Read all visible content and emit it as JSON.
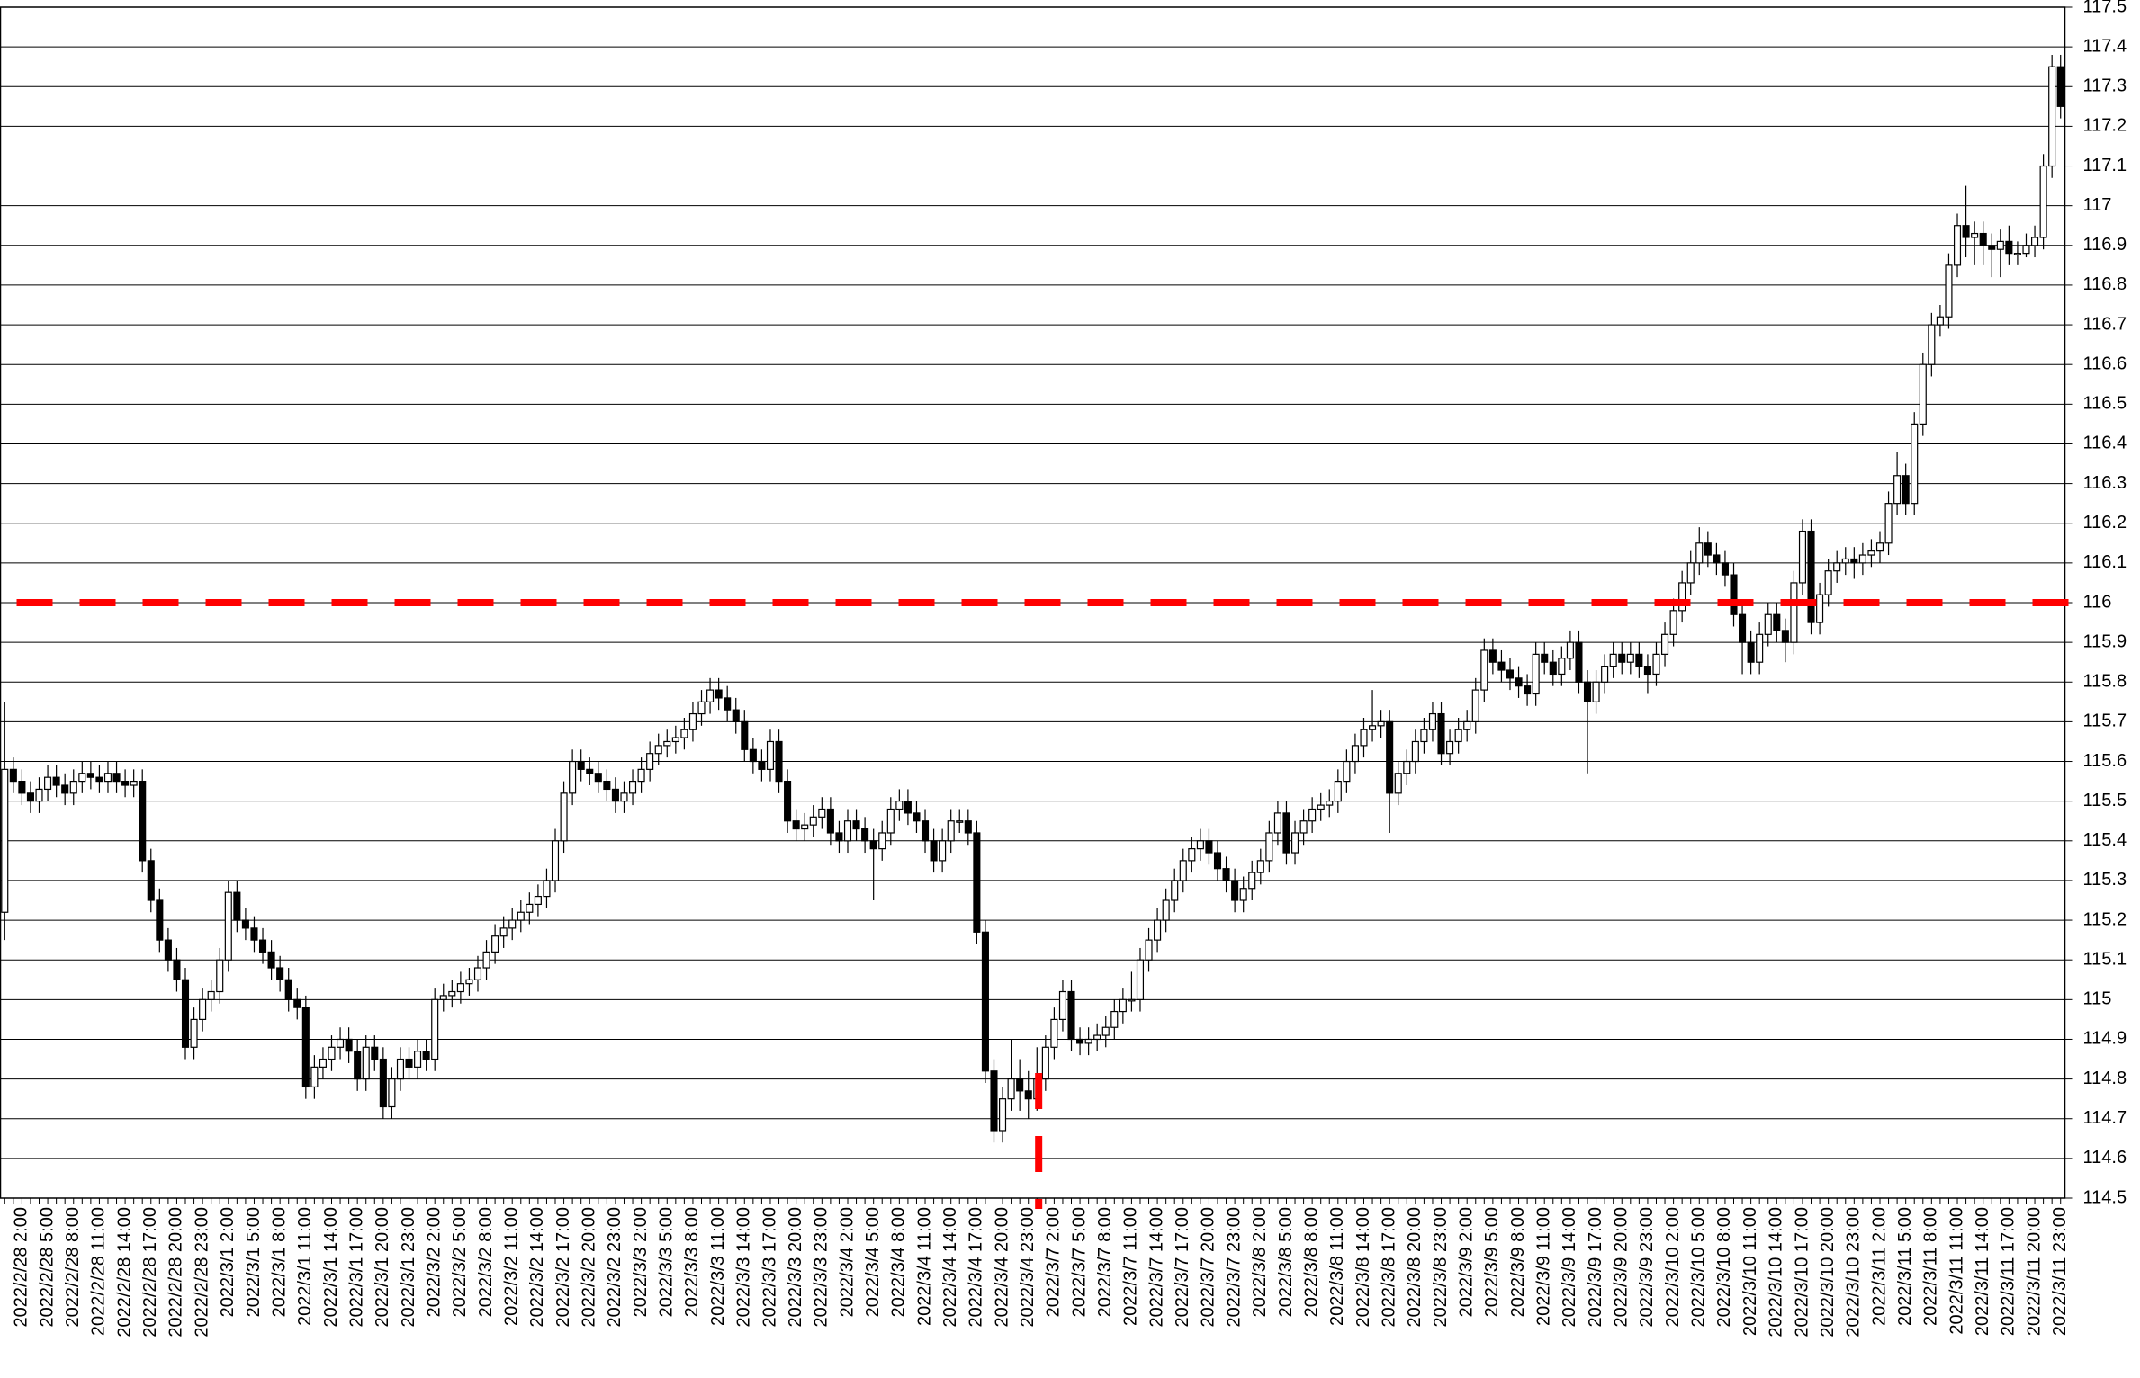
{
  "chart_data": {
    "type": "candlestick",
    "categories": [
      null,
      null,
      "2022/2/28 2:00",
      null,
      null,
      "2022/2/28 5:00",
      null,
      null,
      "2022/2/28 8:00",
      null,
      null,
      "2022/2/28 11:00",
      null,
      null,
      "2022/2/28 14:00",
      null,
      null,
      "2022/2/28 17:00",
      null,
      null,
      "2022/2/28 20:00",
      null,
      null,
      "2022/2/28 23:00",
      null,
      null,
      "2022/3/1 2:00",
      null,
      null,
      "2022/3/1 5:00",
      null,
      null,
      "2022/3/1 8:00",
      null,
      null,
      "2022/3/1 11:00",
      null,
      null,
      "2022/3/1 14:00",
      null,
      null,
      "2022/3/1 17:00",
      null,
      null,
      "2022/3/1 20:00",
      null,
      null,
      "2022/3/1 23:00",
      null,
      null,
      "2022/3/2 2:00",
      null,
      null,
      "2022/3/2 5:00",
      null,
      null,
      "2022/3/2 8:00",
      null,
      null,
      "2022/3/2 11:00",
      null,
      null,
      "2022/3/2 14:00",
      null,
      null,
      "2022/3/2 17:00",
      null,
      null,
      "2022/3/2 20:00",
      null,
      null,
      "2022/3/2 23:00",
      null,
      null,
      "2022/3/3 2:00",
      null,
      null,
      "2022/3/3 5:00",
      null,
      null,
      "2022/3/3 8:00",
      null,
      null,
      "2022/3/3 11:00",
      null,
      null,
      "2022/3/3 14:00",
      null,
      null,
      "2022/3/3 17:00",
      null,
      null,
      "2022/3/3 20:00",
      null,
      null,
      "2022/3/3 23:00",
      null,
      null,
      "2022/3/4 2:00",
      null,
      null,
      "2022/3/4 5:00",
      null,
      null,
      "2022/3/4 8:00",
      null,
      null,
      "2022/3/4 11:00",
      null,
      null,
      "2022/3/4 14:00",
      null,
      null,
      "2022/3/4 17:00",
      null,
      null,
      "2022/3/4 20:00",
      null,
      null,
      "2022/3/4 23:00",
      null,
      null,
      "2022/3/7 2:00",
      null,
      null,
      "2022/3/7 5:00",
      null,
      null,
      "2022/3/7 8:00",
      null,
      null,
      "2022/3/7 11:00",
      null,
      null,
      "2022/3/7 14:00",
      null,
      null,
      "2022/3/7 17:00",
      null,
      null,
      "2022/3/7 20:00",
      null,
      null,
      "2022/3/7 23:00",
      null,
      null,
      "2022/3/8 2:00",
      null,
      null,
      "2022/3/8 5:00",
      null,
      null,
      "2022/3/8 8:00",
      null,
      null,
      "2022/3/8 11:00",
      null,
      null,
      "2022/3/8 14:00",
      null,
      null,
      "2022/3/8 17:00",
      null,
      null,
      "2022/3/8 20:00",
      null,
      null,
      "2022/3/8 23:00",
      null,
      null,
      "2022/3/9 2:00",
      null,
      null,
      "2022/3/9 5:00",
      null,
      null,
      "2022/3/9 8:00",
      null,
      null,
      "2022/3/9 11:00",
      null,
      null,
      "2022/3/9 14:00",
      null,
      null,
      "2022/3/9 17:00",
      null,
      null,
      "2022/3/9 20:00",
      null,
      null,
      "2022/3/9 23:00",
      null,
      null,
      "2022/3/10 2:00",
      null,
      null,
      "2022/3/10 5:00",
      null,
      null,
      "2022/3/10 8:00",
      null,
      null,
      "2022/3/10 11:00",
      null,
      null,
      "2022/3/10 14:00",
      null,
      null,
      "2022/3/10 17:00",
      null,
      null,
      "2022/3/10 20:00",
      null,
      null,
      "2022/3/10 23:00",
      null,
      null,
      "2022/3/11 2:00",
      null,
      null,
      "2022/3/11 5:00",
      null,
      null,
      "2022/3/11 8:00",
      null,
      null,
      "2022/3/11 11:00",
      null,
      null,
      "2022/3/11 14:00",
      null,
      null,
      "2022/3/11 17:00",
      null,
      null,
      "2022/3/11 20:00",
      null,
      null,
      "2022/3/11 23:00"
    ],
    "open": [
      115.22,
      115.58,
      115.55,
      115.52,
      115.5,
      115.53,
      115.56,
      115.54,
      115.52,
      115.55,
      115.57,
      115.56,
      115.55,
      115.57,
      115.55,
      115.54,
      115.55,
      115.35,
      115.25,
      115.15,
      115.1,
      115.05,
      114.88,
      114.95,
      115.0,
      115.02,
      115.1,
      115.27,
      115.2,
      115.18,
      115.15,
      115.12,
      115.08,
      115.05,
      115.0,
      114.98,
      114.78,
      114.83,
      114.85,
      114.88,
      114.9,
      114.87,
      114.8,
      114.88,
      114.85,
      114.73,
      114.8,
      114.85,
      114.83,
      114.87,
      114.85,
      115.0,
      115.01,
      115.02,
      115.04,
      115.05,
      115.08,
      115.12,
      115.16,
      115.18,
      115.2,
      115.22,
      115.24,
      115.26,
      115.3,
      115.4,
      115.52,
      115.6,
      115.58,
      115.57,
      115.55,
      115.53,
      115.5,
      115.52,
      115.55,
      115.58,
      115.62,
      115.64,
      115.65,
      115.66,
      115.68,
      115.72,
      115.75,
      115.78,
      115.76,
      115.73,
      115.7,
      115.63,
      115.6,
      115.58,
      115.65,
      115.55,
      115.45,
      115.43,
      115.44,
      115.46,
      115.48,
      115.42,
      115.4,
      115.45,
      115.43,
      115.4,
      115.38,
      115.42,
      115.48,
      115.5,
      115.47,
      115.45,
      115.4,
      115.35,
      115.4,
      115.45,
      115.45,
      115.42,
      115.17,
      114.82,
      114.67,
      114.75,
      114.8,
      114.77,
      114.75,
      114.8,
      114.88,
      114.95,
      115.02,
      114.9,
      114.89,
      114.9,
      114.91,
      114.93,
      114.97,
      115.0,
      115.0,
      115.1,
      115.15,
      115.2,
      115.25,
      115.3,
      115.35,
      115.38,
      115.4,
      115.37,
      115.33,
      115.3,
      115.25,
      115.28,
      115.32,
      115.35,
      115.42,
      115.47,
      115.37,
      115.42,
      115.45,
      115.48,
      115.49,
      115.5,
      115.55,
      115.6,
      115.64,
      115.68,
      115.69,
      115.7,
      115.52,
      115.57,
      115.6,
      115.65,
      115.68,
      115.72,
      115.62,
      115.65,
      115.68,
      115.7,
      115.78,
      115.88,
      115.85,
      115.83,
      115.81,
      115.79,
      115.77,
      115.87,
      115.85,
      115.82,
      115.86,
      115.9,
      115.8,
      115.75,
      115.8,
      115.84,
      115.87,
      115.85,
      115.87,
      115.84,
      115.82,
      115.87,
      115.92,
      115.98,
      116.05,
      116.1,
      116.15,
      116.12,
      116.1,
      116.07,
      115.97,
      115.9,
      115.85,
      115.92,
      115.97,
      115.93,
      115.9,
      116.05,
      116.18,
      115.95,
      116.02,
      116.08,
      116.1,
      116.11,
      116.1,
      116.12,
      116.13,
      116.15,
      116.25,
      116.32,
      116.25,
      116.45,
      116.6,
      116.7,
      116.72,
      116.85,
      116.95,
      116.92,
      116.93,
      116.9,
      116.89,
      116.91,
      116.88,
      116.88,
      116.9,
      116.92,
      117.1,
      117.35
    ],
    "high": [
      115.75,
      115.61,
      115.58,
      115.55,
      115.56,
      115.59,
      115.59,
      115.57,
      115.58,
      115.6,
      115.6,
      115.59,
      115.6,
      115.6,
      115.58,
      115.58,
      115.58,
      115.38,
      115.28,
      115.18,
      115.13,
      115.08,
      114.98,
      115.03,
      115.05,
      115.13,
      115.3,
      115.3,
      115.23,
      115.21,
      115.18,
      115.15,
      115.11,
      115.08,
      115.03,
      115.01,
      114.86,
      114.88,
      114.91,
      114.93,
      114.93,
      114.9,
      114.91,
      114.91,
      114.88,
      114.83,
      114.88,
      114.88,
      114.9,
      114.9,
      115.03,
      115.04,
      115.05,
      115.07,
      115.08,
      115.11,
      115.15,
      115.19,
      115.21,
      115.23,
      115.25,
      115.27,
      115.29,
      115.33,
      115.43,
      115.55,
      115.63,
      115.63,
      115.61,
      115.6,
      115.58,
      115.56,
      115.55,
      115.58,
      115.61,
      115.65,
      115.67,
      115.68,
      115.69,
      115.71,
      115.75,
      115.78,
      115.81,
      115.81,
      115.79,
      115.76,
      115.73,
      115.66,
      115.63,
      115.68,
      115.68,
      115.58,
      115.48,
      115.47,
      115.49,
      115.51,
      115.51,
      115.45,
      115.48,
      115.48,
      115.46,
      115.43,
      115.45,
      115.51,
      115.53,
      115.53,
      115.5,
      115.48,
      115.43,
      115.43,
      115.48,
      115.48,
      115.48,
      115.45,
      115.2,
      114.85,
      114.78,
      114.9,
      114.85,
      114.82,
      114.88,
      114.91,
      114.98,
      115.05,
      115.05,
      114.93,
      114.93,
      114.94,
      114.96,
      115.0,
      115.03,
      115.07,
      115.13,
      115.18,
      115.23,
      115.28,
      115.33,
      115.38,
      115.41,
      115.43,
      115.43,
      115.4,
      115.36,
      115.33,
      115.31,
      115.35,
      115.38,
      115.45,
      115.5,
      115.5,
      115.45,
      115.48,
      115.51,
      115.52,
      115.53,
      115.58,
      115.63,
      115.67,
      115.71,
      115.78,
      115.73,
      115.73,
      115.6,
      115.63,
      115.68,
      115.71,
      115.75,
      115.75,
      115.68,
      115.71,
      115.73,
      115.81,
      115.91,
      115.91,
      115.88,
      115.86,
      115.84,
      115.82,
      115.9,
      115.9,
      115.88,
      115.89,
      115.93,
      115.93,
      115.83,
      115.83,
      115.87,
      115.9,
      115.9,
      115.9,
      115.9,
      115.87,
      115.9,
      115.95,
      116.01,
      116.08,
      116.13,
      116.19,
      116.18,
      116.15,
      116.13,
      116.1,
      116.0,
      115.93,
      115.95,
      116.0,
      116.0,
      115.96,
      116.08,
      116.21,
      116.21,
      116.05,
      116.11,
      116.13,
      116.14,
      116.14,
      116.15,
      116.16,
      116.18,
      116.28,
      116.38,
      116.35,
      116.48,
      116.63,
      116.73,
      116.75,
      116.88,
      116.98,
      117.05,
      116.96,
      116.96,
      116.93,
      116.94,
      116.95,
      116.91,
      116.93,
      116.95,
      117.13,
      117.38,
      117.38
    ],
    "low": [
      115.15,
      115.52,
      115.49,
      115.47,
      115.47,
      115.5,
      115.51,
      115.49,
      115.49,
      115.52,
      115.53,
      115.52,
      115.52,
      115.52,
      115.51,
      115.51,
      115.32,
      115.22,
      115.12,
      115.07,
      115.02,
      114.85,
      114.85,
      114.92,
      114.97,
      114.99,
      115.07,
      115.17,
      115.15,
      115.12,
      115.09,
      115.05,
      115.02,
      114.97,
      114.95,
      114.75,
      114.75,
      114.8,
      114.82,
      114.85,
      114.84,
      114.77,
      114.77,
      114.82,
      114.7,
      114.7,
      114.77,
      114.8,
      114.8,
      114.82,
      114.82,
      114.97,
      114.98,
      114.99,
      115.01,
      115.02,
      115.05,
      115.09,
      115.13,
      115.15,
      115.17,
      115.19,
      115.21,
      115.23,
      115.27,
      115.37,
      115.49,
      115.55,
      115.54,
      115.52,
      115.5,
      115.47,
      115.47,
      115.49,
      115.52,
      115.55,
      115.59,
      115.61,
      115.62,
      115.63,
      115.65,
      115.69,
      115.72,
      115.73,
      115.7,
      115.67,
      115.6,
      115.57,
      115.55,
      115.55,
      115.52,
      115.42,
      115.4,
      115.4,
      115.41,
      115.43,
      115.39,
      115.37,
      115.37,
      115.4,
      115.37,
      115.25,
      115.35,
      115.39,
      115.45,
      115.44,
      115.42,
      115.37,
      115.32,
      115.32,
      115.37,
      115.42,
      115.39,
      115.14,
      114.79,
      114.64,
      114.64,
      114.72,
      114.72,
      114.7,
      114.72,
      114.77,
      114.85,
      114.92,
      114.87,
      114.86,
      114.86,
      114.87,
      114.88,
      114.9,
      114.94,
      114.97,
      114.97,
      115.07,
      115.12,
      115.17,
      115.22,
      115.27,
      115.32,
      115.35,
      115.34,
      115.3,
      115.27,
      115.22,
      115.22,
      115.25,
      115.29,
      115.32,
      115.39,
      115.34,
      115.34,
      115.39,
      115.42,
      115.45,
      115.46,
      115.47,
      115.52,
      115.57,
      115.61,
      115.65,
      115.66,
      115.42,
      115.49,
      115.54,
      115.57,
      115.62,
      115.65,
      115.59,
      115.59,
      115.62,
      115.65,
      115.67,
      115.75,
      115.82,
      115.8,
      115.78,
      115.76,
      115.74,
      115.74,
      115.82,
      115.79,
      115.79,
      115.83,
      115.77,
      115.57,
      115.72,
      115.77,
      115.81,
      115.82,
      115.82,
      115.81,
      115.77,
      115.79,
      115.84,
      115.89,
      115.95,
      116.02,
      116.07,
      116.09,
      116.07,
      116.04,
      115.94,
      115.82,
      115.82,
      115.82,
      115.89,
      115.9,
      115.85,
      115.87,
      116.02,
      115.92,
      115.92,
      115.99,
      116.05,
      116.07,
      116.06,
      116.07,
      116.09,
      116.1,
      116.12,
      116.22,
      116.22,
      116.22,
      116.42,
      116.57,
      116.67,
      116.69,
      116.82,
      116.87,
      116.85,
      116.85,
      116.82,
      116.82,
      116.85,
      116.85,
      116.87,
      116.87,
      116.89,
      117.07,
      117.22
    ],
    "close": [
      115.58,
      115.55,
      115.52,
      115.5,
      115.53,
      115.56,
      115.54,
      115.52,
      115.55,
      115.57,
      115.56,
      115.55,
      115.57,
      115.55,
      115.54,
      115.55,
      115.35,
      115.25,
      115.15,
      115.1,
      115.05,
      114.88,
      114.95,
      115.0,
      115.02,
      115.1,
      115.27,
      115.2,
      115.18,
      115.15,
      115.12,
      115.08,
      115.05,
      115.0,
      114.98,
      114.78,
      114.83,
      114.85,
      114.88,
      114.9,
      114.87,
      114.8,
      114.88,
      114.85,
      114.73,
      114.8,
      114.85,
      114.83,
      114.87,
      114.85,
      115.0,
      115.01,
      115.02,
      115.04,
      115.05,
      115.08,
      115.12,
      115.16,
      115.18,
      115.2,
      115.22,
      115.24,
      115.26,
      115.3,
      115.4,
      115.52,
      115.6,
      115.58,
      115.57,
      115.55,
      115.53,
      115.5,
      115.52,
      115.55,
      115.58,
      115.62,
      115.64,
      115.65,
      115.66,
      115.68,
      115.72,
      115.75,
      115.78,
      115.76,
      115.73,
      115.7,
      115.63,
      115.6,
      115.58,
      115.65,
      115.55,
      115.45,
      115.43,
      115.44,
      115.46,
      115.48,
      115.42,
      115.4,
      115.45,
      115.43,
      115.4,
      115.38,
      115.42,
      115.48,
      115.5,
      115.47,
      115.45,
      115.4,
      115.35,
      115.4,
      115.45,
      115.45,
      115.42,
      115.17,
      114.82,
      114.67,
      114.75,
      114.8,
      114.77,
      114.75,
      114.8,
      114.88,
      114.95,
      115.02,
      114.9,
      114.89,
      114.9,
      114.91,
      114.93,
      114.97,
      115.0,
      115.0,
      115.1,
      115.15,
      115.2,
      115.25,
      115.3,
      115.35,
      115.38,
      115.4,
      115.37,
      115.33,
      115.3,
      115.25,
      115.28,
      115.32,
      115.35,
      115.42,
      115.47,
      115.37,
      115.42,
      115.45,
      115.48,
      115.49,
      115.5,
      115.55,
      115.6,
      115.64,
      115.68,
      115.69,
      115.7,
      115.52,
      115.57,
      115.6,
      115.65,
      115.68,
      115.72,
      115.62,
      115.65,
      115.68,
      115.7,
      115.78,
      115.88,
      115.85,
      115.83,
      115.81,
      115.79,
      115.77,
      115.87,
      115.85,
      115.82,
      115.86,
      115.9,
      115.8,
      115.75,
      115.8,
      115.84,
      115.87,
      115.85,
      115.87,
      115.84,
      115.82,
      115.87,
      115.92,
      115.98,
      116.05,
      116.1,
      116.15,
      116.12,
      116.1,
      116.07,
      115.97,
      115.9,
      115.85,
      115.92,
      115.97,
      115.93,
      115.9,
      116.05,
      116.18,
      115.95,
      116.02,
      116.08,
      116.1,
      116.11,
      116.1,
      116.12,
      116.13,
      116.15,
      116.25,
      116.32,
      116.25,
      116.45,
      116.6,
      116.7,
      116.72,
      116.85,
      116.95,
      116.92,
      116.93,
      116.9,
      116.89,
      116.91,
      116.88,
      116.88,
      116.9,
      116.92,
      117.1,
      117.35,
      117.25
    ],
    "up_color": "#ffffff",
    "down_color": "#000000",
    "hline": 116,
    "hline_color": "#ff0000",
    "ylim": [
      114.5,
      117.5
    ],
    "yticks": [
      114.5,
      114.6,
      114.7,
      114.8,
      114.9,
      115,
      115.1,
      115.2,
      115.3,
      115.4,
      115.5,
      115.6,
      115.7,
      115.8,
      115.9,
      116,
      116.1,
      116.2,
      116.3,
      116.4,
      116.5,
      116.6,
      116.7,
      116.8,
      116.9,
      117,
      117.1,
      117.2,
      117.3,
      117.4,
      117.5
    ],
    "grid": true
  }
}
